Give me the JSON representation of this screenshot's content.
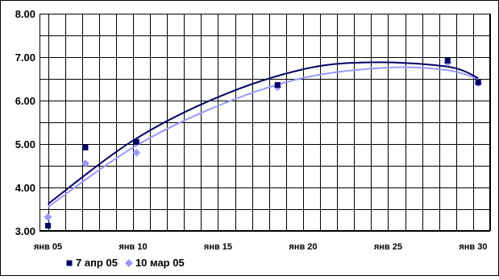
{
  "chart_data": {
    "type": "scatter",
    "title": "",
    "xlabel": "",
    "ylabel": "",
    "x_range": [
      4.5,
      31
    ],
    "ylim": [
      3.0,
      8.0
    ],
    "y_ticks": [
      "3.00",
      "4.00",
      "5.00",
      "6.00",
      "7.00",
      "8.00"
    ],
    "x_ticks": [
      {
        "value": 5,
        "label": "янв 05"
      },
      {
        "value": 10,
        "label": "янв 10"
      },
      {
        "value": 15,
        "label": "янв 15"
      },
      {
        "value": 20,
        "label": "янв 20"
      },
      {
        "value": 25,
        "label": "янв 25"
      },
      {
        "value": 30,
        "label": "янв 30"
      }
    ],
    "grid": true,
    "legend_position": "bottom-left",
    "trendline": "polynomial",
    "series": [
      {
        "name": "7 апр 05",
        "color": "#000066",
        "marker": "square",
        "points": [
          {
            "x": 5.0,
            "y": 3.12
          },
          {
            "x": 7.2,
            "y": 4.92
          },
          {
            "x": 10.2,
            "y": 5.05
          },
          {
            "x": 18.5,
            "y": 6.36
          },
          {
            "x": 28.5,
            "y": 6.92
          },
          {
            "x": 30.3,
            "y": 6.42
          }
        ],
        "trend_points": [
          {
            "x": 5.0,
            "y": 3.62
          },
          {
            "x": 10.0,
            "y": 5.08
          },
          {
            "x": 15.0,
            "y": 6.08
          },
          {
            "x": 20.0,
            "y": 6.72
          },
          {
            "x": 24.0,
            "y": 6.88
          },
          {
            "x": 28.5,
            "y": 6.78
          },
          {
            "x": 30.3,
            "y": 6.52
          }
        ]
      },
      {
        "name": "10 мар 05",
        "color": "#9999ff",
        "marker": "diamond",
        "points": [
          {
            "x": 5.0,
            "y": 3.32
          },
          {
            "x": 7.2,
            "y": 4.55
          },
          {
            "x": 10.2,
            "y": 4.8
          },
          {
            "x": 18.5,
            "y": 6.31
          },
          {
            "x": 28.5,
            "y": 6.87
          },
          {
            "x": 30.3,
            "y": 6.4
          }
        ],
        "trend_points": [
          {
            "x": 5.0,
            "y": 3.55
          },
          {
            "x": 10.0,
            "y": 4.92
          },
          {
            "x": 15.0,
            "y": 5.88
          },
          {
            "x": 20.0,
            "y": 6.52
          },
          {
            "x": 25.0,
            "y": 6.76
          },
          {
            "x": 28.5,
            "y": 6.7
          },
          {
            "x": 30.3,
            "y": 6.5
          }
        ]
      }
    ]
  }
}
